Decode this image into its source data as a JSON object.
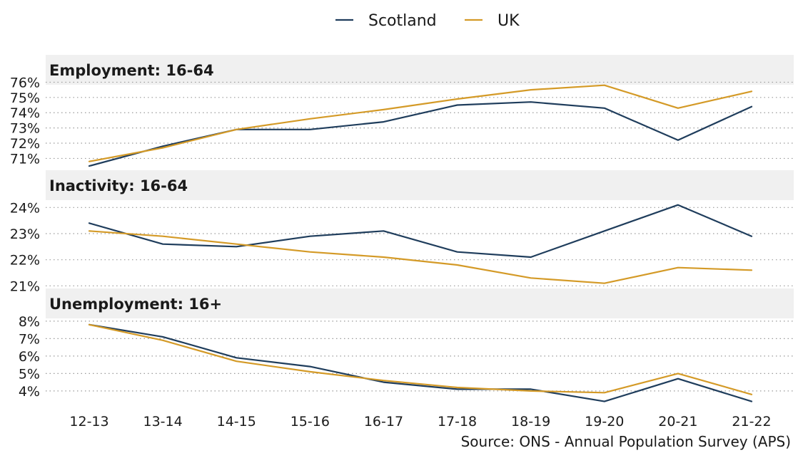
{
  "chart_data": {
    "type": "line",
    "categories": [
      "12-13",
      "13-14",
      "14-15",
      "15-16",
      "16-17",
      "17-18",
      "18-19",
      "19-20",
      "20-21",
      "21-22"
    ],
    "legend": {
      "placement": "top-center",
      "entries": [
        {
          "name": "Scotland",
          "color": "#1f3d5c"
        },
        {
          "name": "UK",
          "color": "#d49a27"
        }
      ]
    },
    "source": "Source: ONS - Annual Population Survey (APS)",
    "panels": [
      {
        "title": "Employment: 16-64",
        "ylim": [
          70.6,
          76.3
        ],
        "yticks": [
          71,
          72,
          73,
          74,
          75,
          76
        ],
        "ytick_labels": [
          "71%",
          "72%",
          "73%",
          "74%",
          "75%",
          "76%"
        ],
        "grid": true,
        "series": [
          {
            "name": "Scotland",
            "values": [
              70.5,
              71.8,
              72.9,
              72.9,
              73.4,
              74.5,
              74.7,
              74.3,
              72.2,
              74.4
            ]
          },
          {
            "name": "UK",
            "values": [
              70.8,
              71.7,
              72.9,
              73.6,
              74.2,
              74.9,
              75.5,
              75.8,
              74.3,
              75.4
            ]
          }
        ]
      },
      {
        "title": "Inactivity: 16-64",
        "ylim": [
          20.9,
          24.2
        ],
        "yticks": [
          21,
          22,
          23,
          24
        ],
        "ytick_labels": [
          "21%",
          "22%",
          "23%",
          "24%"
        ],
        "grid": true,
        "series": [
          {
            "name": "Scotland",
            "values": [
              23.4,
              22.6,
              22.5,
              22.9,
              23.1,
              22.3,
              22.1,
              23.1,
              24.1,
              22.9
            ]
          },
          {
            "name": "UK",
            "values": [
              23.1,
              22.9,
              22.6,
              22.3,
              22.1,
              21.8,
              21.3,
              21.1,
              21.7,
              21.6
            ]
          }
        ]
      },
      {
        "title": "Unemployment: 16+",
        "ylim": [
          3.3,
          8.2
        ],
        "yticks": [
          4,
          5,
          6,
          7,
          8
        ],
        "ytick_labels": [
          "4%",
          "5%",
          "6%",
          "7%",
          "8%"
        ],
        "grid": true,
        "series": [
          {
            "name": "Scotland",
            "values": [
              7.8,
              7.1,
              5.9,
              5.4,
              4.5,
              4.1,
              4.1,
              3.4,
              4.7,
              3.4
            ]
          },
          {
            "name": "UK",
            "values": [
              7.8,
              6.9,
              5.7,
              5.1,
              4.6,
              4.2,
              4.0,
              3.9,
              5.0,
              3.8
            ]
          }
        ]
      }
    ]
  }
}
